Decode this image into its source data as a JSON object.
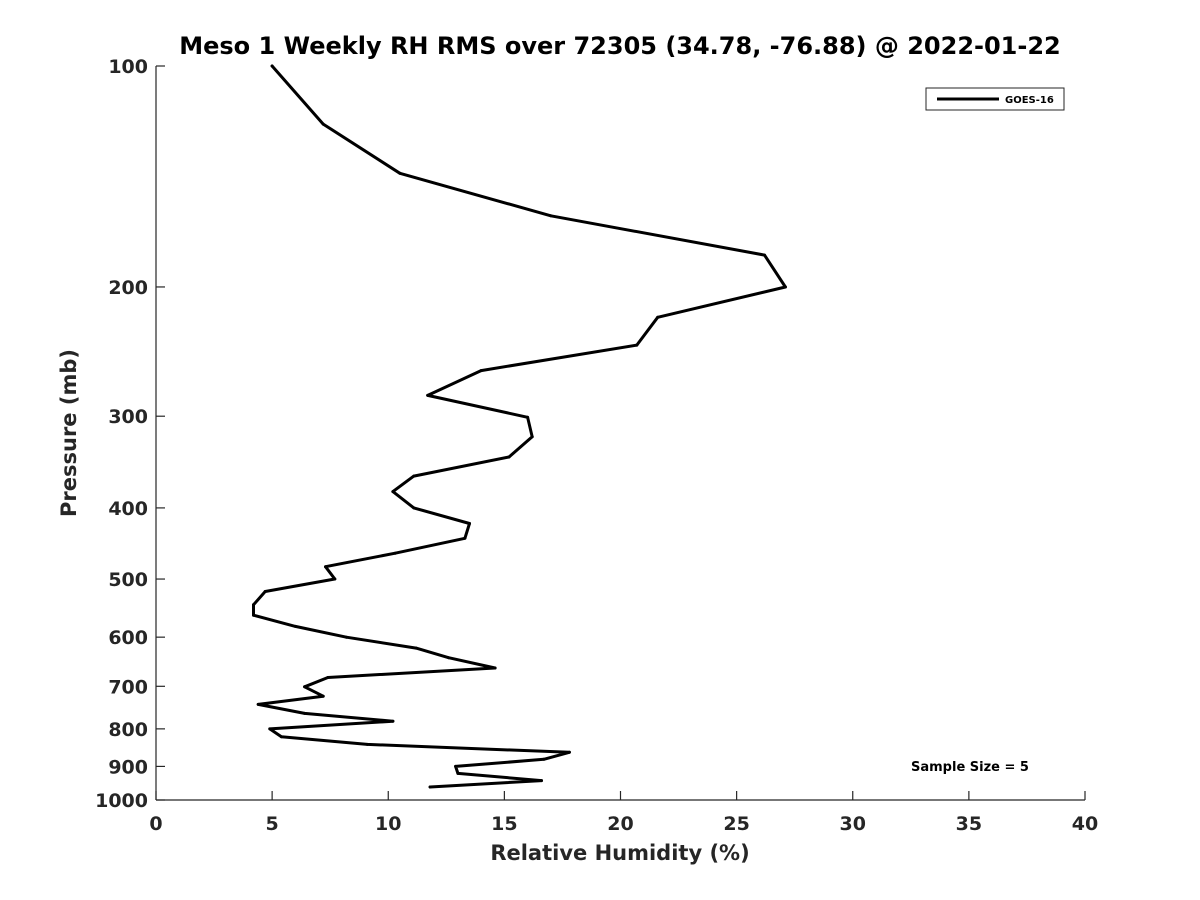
{
  "chart_data": {
    "type": "line",
    "title": "Meso 1 Weekly RH RMS over 72305 (34.78, -76.88) @ 2022-01-22",
    "xlabel": "Relative Humidity (%)",
    "ylabel": "Pressure (mb)",
    "xlim": [
      0,
      40
    ],
    "ylim": [
      100,
      1000
    ],
    "yscale": "log",
    "y_reversed": true,
    "grid": false,
    "x_ticks": [
      0,
      5,
      10,
      15,
      20,
      25,
      30,
      35,
      40
    ],
    "x_tick_labels": [
      "0",
      "5",
      "10",
      "15",
      "20",
      "25",
      "30",
      "35",
      "40"
    ],
    "y_ticks": [
      100,
      200,
      300,
      400,
      500,
      600,
      700,
      800,
      900,
      1000
    ],
    "y_tick_labels": [
      "100",
      "200",
      "300",
      "400",
      "500",
      "600",
      "700",
      "800",
      "900",
      "1000"
    ],
    "legend": {
      "placement": "top-right",
      "entries": [
        "GOES-16"
      ]
    },
    "annotations": [
      {
        "text": "Sample Size = 5",
        "placement": "bottom-right"
      }
    ],
    "series": [
      {
        "name": "GOES-16",
        "color": "#000000",
        "points": [
          [
            5.0,
            100
          ],
          [
            7.2,
            120
          ],
          [
            10.5,
            140
          ],
          [
            17.0,
            160
          ],
          [
            26.2,
            181
          ],
          [
            27.1,
            200
          ],
          [
            21.6,
            220
          ],
          [
            20.7,
            240
          ],
          [
            14.0,
            260
          ],
          [
            11.7,
            281
          ],
          [
            16.0,
            301
          ],
          [
            16.2,
            320
          ],
          [
            15.2,
            341
          ],
          [
            11.1,
            362
          ],
          [
            10.2,
            380
          ],
          [
            11.1,
            400
          ],
          [
            13.5,
            420
          ],
          [
            13.3,
            440
          ],
          [
            10.3,
            461
          ],
          [
            7.3,
            481
          ],
          [
            7.7,
            500
          ],
          [
            4.7,
            520
          ],
          [
            4.2,
            542
          ],
          [
            4.2,
            560
          ],
          [
            6.0,
            580
          ],
          [
            8.2,
            600
          ],
          [
            11.2,
            621
          ],
          [
            12.6,
            640
          ],
          [
            14.6,
            661
          ],
          [
            7.4,
            681
          ],
          [
            6.4,
            701
          ],
          [
            7.2,
            722
          ],
          [
            4.4,
            741
          ],
          [
            6.4,
            762
          ],
          [
            10.2,
            781
          ],
          [
            4.9,
            800
          ],
          [
            5.4,
            820
          ],
          [
            9.1,
            840
          ],
          [
            17.8,
            861
          ],
          [
            16.7,
            880
          ],
          [
            12.9,
            900
          ],
          [
            13.0,
            920
          ],
          [
            16.6,
            941
          ],
          [
            11.8,
            960
          ]
        ]
      }
    ]
  }
}
